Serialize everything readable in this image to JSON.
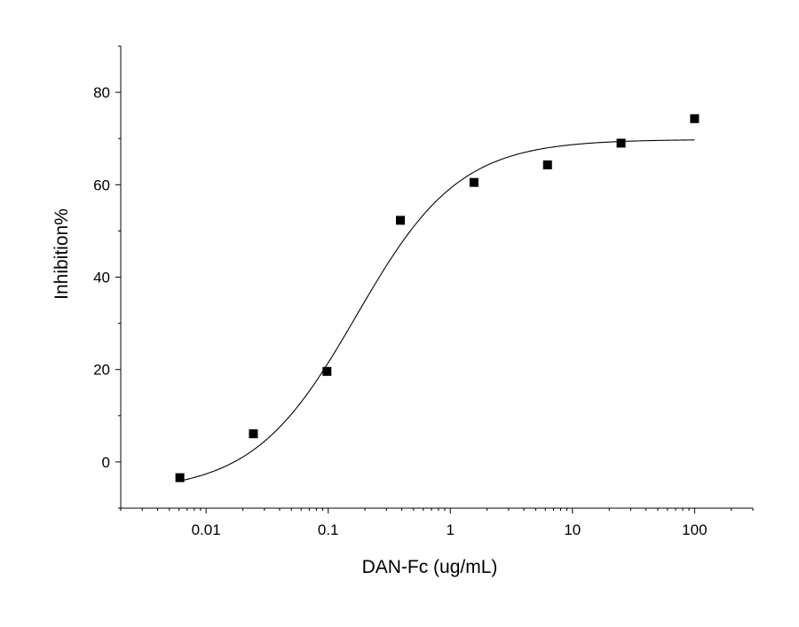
{
  "chart_data": {
    "type": "scatter",
    "title": "",
    "xlabel": "DAN-Fc (ug/mL)",
    "ylabel": "Inhibition%",
    "x_scale": "log",
    "xlim": [
      0.002,
      300
    ],
    "ylim": [
      -10,
      90
    ],
    "x_ticks": [
      0.01,
      0.1,
      1,
      10,
      100
    ],
    "x_tick_labels": [
      "0.01",
      "0.1",
      "1",
      "10",
      "100"
    ],
    "y_ticks": [
      0,
      20,
      40,
      60,
      80
    ],
    "y_tick_labels": [
      "0",
      "20",
      "40",
      "60",
      "80"
    ],
    "grid": false,
    "legend": "none",
    "series": [
      {
        "marker": "square",
        "color": "#000000",
        "x": [
          0.0061,
          0.0244,
          0.0977,
          0.39,
          1.5625,
          6.25,
          25,
          100
        ],
        "y": [
          -3.4,
          6.1,
          19.6,
          52.3,
          60.5,
          64.3,
          69.0,
          74.3
        ]
      }
    ],
    "fit_curve": {
      "type": "logistic",
      "color": "#000000",
      "bottom": -6.5,
      "top": 69.8,
      "ec50": 0.17,
      "hill": 1.03,
      "x_range": [
        0.0061,
        100
      ]
    }
  }
}
